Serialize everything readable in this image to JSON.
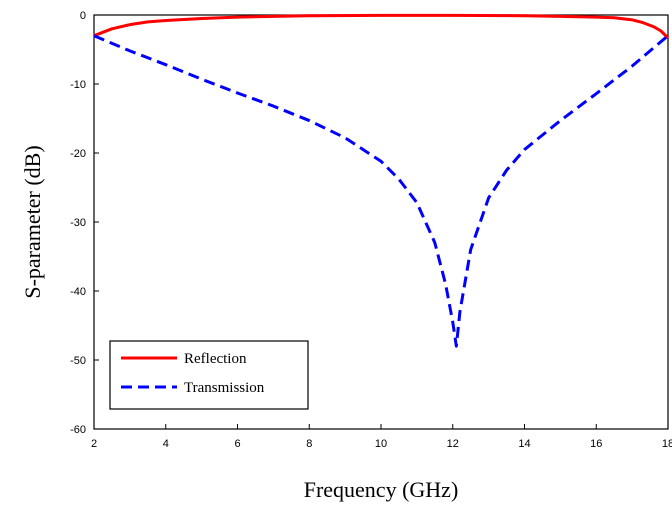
{
  "chart_data": {
    "type": "line",
    "xlabel": "Frequency (GHz)",
    "ylabel": "S-parameter (dB)",
    "xlim": [
      2,
      18
    ],
    "ylim": [
      -60,
      0
    ],
    "xticks": [
      2,
      4,
      6,
      8,
      10,
      12,
      14,
      16,
      18
    ],
    "yticks": [
      0,
      -10,
      -20,
      -30,
      -40,
      -50,
      -60
    ],
    "grid": false,
    "legend_position": "bottom-left",
    "series": [
      {
        "name": "Reflection",
        "color": "#ff0000",
        "style": "solid",
        "x": [
          2,
          2.5,
          3,
          3.5,
          4,
          5,
          6,
          7,
          8,
          10,
          12,
          14,
          15,
          16,
          16.5,
          17,
          17.3,
          17.6,
          17.8,
          18
        ],
        "y": [
          -3.0,
          -2.0,
          -1.4,
          -1.0,
          -0.8,
          -0.5,
          -0.3,
          -0.2,
          -0.1,
          -0.05,
          -0.05,
          -0.1,
          -0.2,
          -0.3,
          -0.4,
          -0.7,
          -1.1,
          -1.7,
          -2.3,
          -3.3
        ]
      },
      {
        "name": "Transmission",
        "color": "#0000ff",
        "style": "dashed",
        "x": [
          2,
          3,
          4,
          5,
          6,
          7,
          8,
          9,
          10,
          10.5,
          11,
          11.5,
          11.8,
          12.0,
          12.1,
          12.2,
          12.5,
          13,
          13.5,
          14,
          15,
          16,
          17,
          18
        ],
        "y": [
          -3.0,
          -5.2,
          -7.2,
          -9.3,
          -11.3,
          -13.2,
          -15.3,
          -17.8,
          -21.2,
          -23.8,
          -27.2,
          -33.0,
          -39.0,
          -44.5,
          -48.0,
          -43.0,
          -34.0,
          -26.5,
          -22.5,
          -19.5,
          -15.3,
          -11.4,
          -7.4,
          -3.0
        ]
      }
    ]
  }
}
